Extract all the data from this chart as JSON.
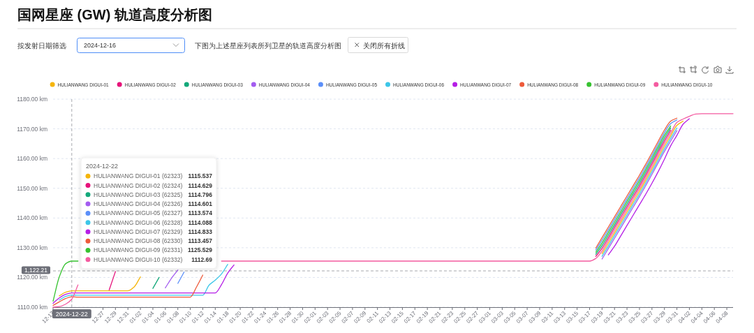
{
  "chart_data": {
    "type": "line",
    "title": "国网星座 (GW) 轨道高度分析图",
    "subtitle": "下图为上述星座列表所列卫星的轨道高度分析图",
    "categories": [
      "12-17",
      null,
      null,
      null,
      null,
      null,
      null,
      null,
      "12-27",
      null,
      "12-29",
      null,
      "12-31",
      null,
      "01-02",
      null,
      "01-04",
      null,
      "01-06",
      null,
      "01-08",
      null,
      "01-10",
      null,
      "01-12",
      null,
      "01-14",
      null,
      "01-18",
      null,
      "01-20",
      null,
      "01-22",
      null,
      "01-24",
      null,
      "01-26",
      null,
      "01-28",
      null,
      "01-30",
      null,
      "02-01",
      null,
      "02-03",
      null,
      "02-05",
      null,
      "02-07",
      null,
      "02-09",
      null,
      "02-11",
      null,
      "02-13",
      null,
      "02-15",
      null,
      "02-17",
      null,
      "02-19",
      null,
      "02-21",
      null,
      "02-23",
      null,
      "02-25",
      null,
      "02-27",
      null,
      "03-01",
      null,
      "03-03",
      null,
      "03-05",
      null,
      "03-07",
      null,
      "03-09",
      null,
      "03-11",
      null,
      "03-13",
      null,
      "03-15",
      null,
      "03-17",
      null,
      "03-19",
      null,
      "03-21",
      null,
      "03-23",
      null,
      "03-25",
      null,
      "03-27",
      null,
      "03-29",
      null,
      "03-31",
      null,
      "04-02",
      null,
      "04-04",
      null,
      "04-06",
      null,
      "04-08",
      null
    ],
    "series": [
      {
        "name": "HULIANWANG DIGUI-01",
        "color": "#f5b50a",
        "values": [
          null,
          1113.8,
          1115.0,
          1115.5,
          1115.5,
          1115.5,
          1115.5,
          1115.5,
          1115.5,
          1115.5,
          1115.5,
          1115.5,
          1115.5,
          1116.8,
          1120.2,
          null,
          null,
          null,
          null,
          null,
          null,
          null,
          null,
          null,
          null,
          null,
          null,
          null,
          null,
          null,
          null,
          null,
          null,
          null,
          null,
          null,
          null,
          null,
          null,
          null,
          null,
          null,
          null,
          null,
          null,
          null,
          null,
          null,
          null,
          null,
          null,
          null,
          null,
          null,
          null,
          null,
          null,
          null,
          null,
          null,
          null,
          null,
          null,
          null,
          null,
          null,
          null,
          null,
          null,
          null,
          null,
          null,
          null,
          null,
          null,
          null,
          null,
          null,
          null,
          null,
          null,
          null,
          null,
          null,
          null,
          null,
          null,
          null,
          1128.0,
          1131.5,
          1135.0,
          1138.5,
          1142.0,
          1145.5,
          1149.0,
          1152.7,
          1156.5,
          1160.4,
          1164.2,
          1167.7,
          1171.2,
          1172.6,
          null,
          null,
          null,
          null,
          null,
          null,
          null,
          null
        ]
      },
      {
        "name": "HULIANWANG DIGUI-02",
        "color": "#e6127a",
        "values": [
          null,
          null,
          null,
          null,
          null,
          null,
          null,
          null,
          null,
          1115.8,
          1122,
          null,
          null,
          null,
          null,
          null,
          null,
          null,
          null,
          null,
          null,
          null,
          null,
          null,
          null,
          null,
          null,
          null,
          null,
          null,
          null,
          null,
          null,
          null,
          null,
          null,
          null,
          null,
          null,
          null,
          null,
          null,
          null,
          null,
          null,
          null,
          null,
          null,
          null,
          null,
          null,
          null,
          null,
          null,
          null,
          null,
          null,
          null,
          null,
          null,
          null,
          null,
          null,
          null,
          null,
          null,
          null,
          null,
          null,
          null,
          null,
          null,
          null,
          null,
          null,
          null,
          null,
          null,
          null,
          null,
          null,
          null,
          null,
          null,
          null,
          null,
          null,
          1127.1,
          1129.8,
          1133.3,
          1136.8,
          1140.3,
          1143.8,
          1147.3,
          1150.8,
          1154.5,
          1158.3,
          1162.2,
          1166,
          1169.5,
          null,
          null,
          null,
          null,
          null,
          null,
          null,
          null,
          null,
          null
        ]
      },
      {
        "name": "HULIANWANG DIGUI-03",
        "color": "#13a87a",
        "values": [
          null,
          null,
          null,
          null,
          null,
          null,
          null,
          null,
          null,
          null,
          null,
          null,
          null,
          null,
          null,
          null,
          1116.3,
          1120,
          null,
          null,
          null,
          null,
          null,
          null,
          null,
          null,
          null,
          null,
          null,
          null,
          null,
          null,
          null,
          null,
          null,
          null,
          null,
          null,
          null,
          null,
          null,
          null,
          null,
          null,
          null,
          null,
          null,
          null,
          null,
          null,
          null,
          null,
          null,
          null,
          null,
          null,
          null,
          null,
          null,
          null,
          null,
          null,
          null,
          null,
          null,
          null,
          null,
          null,
          null,
          null,
          null,
          null,
          null,
          null,
          null,
          null,
          null,
          null,
          null,
          null,
          null,
          null,
          null,
          null,
          null,
          null,
          null,
          1127.8,
          1130.7,
          1134.2,
          1137.7,
          1141.2,
          1144.7,
          1148.2,
          1151.7,
          1155.4,
          1159.2,
          1163.1,
          1166.9,
          1170.3,
          null,
          null,
          null,
          null,
          null,
          null,
          null,
          null,
          null,
          null
        ]
      },
      {
        "name": "HULIANWANG DIGUI-04",
        "color": "#a35cf0",
        "values": [
          null,
          null,
          null,
          null,
          null,
          null,
          null,
          null,
          null,
          null,
          null,
          null,
          null,
          null,
          null,
          null,
          null,
          null,
          1116.5,
          1119.8,
          1122.5,
          null,
          null,
          null,
          null,
          null,
          null,
          null,
          null,
          null,
          null,
          null,
          null,
          null,
          null,
          null,
          null,
          null,
          null,
          null,
          null,
          null,
          null,
          null,
          null,
          null,
          null,
          null,
          null,
          null,
          null,
          null,
          null,
          null,
          null,
          null,
          null,
          null,
          null,
          null,
          null,
          null,
          null,
          null,
          null,
          null,
          null,
          null,
          null,
          null,
          null,
          null,
          null,
          null,
          null,
          null,
          null,
          null,
          null,
          null,
          null,
          null,
          null,
          null,
          null,
          null,
          null,
          null,
          1126.2,
          1129.7,
          1133.2,
          1136.7,
          1140.2,
          1143.7,
          1147.2,
          1150.9,
          1154.7,
          1158.6,
          1162.4,
          1165.9,
          1169.4,
          null,
          null,
          null,
          null,
          null,
          null,
          null,
          null,
          null
        ]
      },
      {
        "name": "HULIANWANG DIGUI-05",
        "color": "#5b8ff9",
        "values": [
          null,
          null,
          null,
          null,
          null,
          null,
          null,
          null,
          null,
          null,
          null,
          null,
          null,
          null,
          null,
          null,
          null,
          null,
          null,
          null,
          1118,
          1121.8,
          null,
          null,
          null,
          null,
          null,
          null,
          null,
          null,
          null,
          null,
          null,
          null,
          null,
          null,
          null,
          null,
          null,
          null,
          null,
          null,
          null,
          null,
          null,
          null,
          null,
          null,
          null,
          null,
          null,
          null,
          null,
          null,
          null,
          null,
          null,
          null,
          null,
          null,
          null,
          null,
          null,
          null,
          null,
          null,
          null,
          null,
          null,
          null,
          null,
          null,
          null,
          null,
          null,
          null,
          null,
          null,
          null,
          null,
          null,
          null,
          null,
          null,
          null,
          null,
          null,
          1129.2,
          1132.5,
          1136,
          1139.5,
          1143,
          1146.5,
          1150,
          1153.5,
          1157.2,
          1161,
          1164.9,
          1168.7,
          1171.8,
          1173.0,
          null,
          null,
          null,
          null,
          null,
          null,
          null,
          null,
          null
        ]
      },
      {
        "name": "HULIANWANG DIGUI-06",
        "color": "#3cc6e8",
        "values": [
          null,
          1112.4,
          1113.6,
          1114.1,
          1114.0,
          1114.0,
          1114.0,
          1114.0,
          1114.0,
          1114.0,
          1114.0,
          1114.0,
          1114.0,
          1114.0,
          1114.0,
          1114.0,
          1114.0,
          1114.0,
          1114.0,
          1114.0,
          1114.0,
          1114.0,
          1114.0,
          1114.0,
          1114.0,
          1117.4,
          1119.1,
          1121.2,
          1124.4,
          null,
          null,
          null,
          null,
          null,
          null,
          null,
          null,
          null,
          null,
          null,
          null,
          null,
          null,
          null,
          null,
          null,
          null,
          null,
          null,
          null,
          null,
          null,
          null,
          null,
          null,
          null,
          null,
          null,
          null,
          null,
          null,
          null,
          null,
          null,
          null,
          null,
          null,
          null,
          null,
          null,
          null,
          null,
          null,
          null,
          null,
          null,
          null,
          null,
          null,
          null,
          null,
          null,
          null,
          null,
          null,
          null,
          null,
          null,
          1127.1,
          1130.6,
          1134.1,
          1137.6,
          1141.1,
          1144.6,
          1148.1,
          1151.8,
          1155.6,
          1159.5,
          1163.3,
          1166.8,
          1170.3,
          null,
          null,
          null,
          null,
          null,
          null,
          null,
          null,
          null
        ]
      },
      {
        "name": "HULIANWANG DIGUI-07",
        "color": "#b51ee6",
        "values": [
          1111.3,
          1113.1,
          1114.3,
          1114.8,
          1114.8,
          1114.8,
          1114.8,
          1114.8,
          1114.8,
          1114.8,
          1114.8,
          1114.8,
          1114.8,
          1114.8,
          1114.8,
          1114.8,
          1114.8,
          1114.8,
          1114.8,
          1114.8,
          1114.8,
          1114.8,
          1114.8,
          1114.8,
          1114.8,
          1114.8,
          1114.8,
          1117.6,
          1121.5,
          1124.2,
          null,
          null,
          null,
          null,
          null,
          null,
          null,
          null,
          null,
          null,
          null,
          null,
          null,
          null,
          null,
          null,
          null,
          null,
          null,
          null,
          null,
          null,
          null,
          null,
          null,
          null,
          null,
          null,
          null,
          null,
          null,
          null,
          null,
          null,
          null,
          null,
          null,
          null,
          null,
          null,
          null,
          null,
          null,
          null,
          null,
          null,
          null,
          null,
          null,
          null,
          null,
          null,
          null,
          null,
          null,
          null,
          null,
          null,
          null,
          1127.6,
          1130.5,
          1134,
          1137.5,
          1141,
          1144.5,
          1148,
          1151.7,
          1155.6,
          1159.8,
          1164.3,
          1167.8,
          1171.6,
          1173.4,
          null,
          null,
          null,
          null,
          null,
          null,
          null
        ]
      },
      {
        "name": "HULIANWANG DIGUI-08",
        "color": "#ee5a3a",
        "values": [
          1110.6,
          1111.8,
          1112.9,
          1113.5,
          1113.4,
          1113.4,
          1113.4,
          1113.4,
          1113.4,
          1113.4,
          1113.4,
          1113.4,
          1113.4,
          1113.4,
          1113.4,
          1113.4,
          1113.4,
          1113.4,
          1113.4,
          1113.4,
          1113.4,
          1113.4,
          1113.4,
          1116.8,
          1120.8,
          null,
          null,
          null,
          null,
          null,
          null,
          null,
          null,
          null,
          null,
          null,
          null,
          null,
          null,
          null,
          null,
          null,
          null,
          null,
          null,
          null,
          null,
          null,
          null,
          null,
          null,
          null,
          null,
          null,
          null,
          null,
          null,
          null,
          null,
          null,
          null,
          null,
          null,
          null,
          null,
          null,
          null,
          null,
          null,
          null,
          null,
          null,
          null,
          null,
          null,
          null,
          null,
          null,
          null,
          null,
          null,
          null,
          null,
          null,
          null,
          null,
          null,
          1129.9,
          1133.4,
          1136.9,
          1140.4,
          1143.9,
          1147.4,
          1150.9,
          1154.4,
          1158.1,
          1161.9,
          1165.8,
          1169.6,
          1172.6,
          1173.6,
          null,
          null,
          null,
          null,
          null,
          null,
          null,
          null,
          null
        ]
      },
      {
        "name": "HULIANWANG DIGUI-09",
        "color": "#36c230",
        "values": [
          1112.0,
          1120.2,
          1124.6,
          1125.5,
          1125.5,
          null,
          null,
          null,
          null,
          null,
          null,
          null,
          null,
          null,
          null,
          null,
          null,
          null,
          null,
          null,
          null,
          null,
          null,
          null,
          null,
          null,
          null,
          null,
          null,
          null,
          null,
          null,
          null,
          null,
          null,
          null,
          null,
          null,
          null,
          null,
          null,
          null,
          null,
          null,
          null,
          null,
          null,
          null,
          null,
          null,
          null,
          null,
          null,
          null,
          null,
          null,
          null,
          null,
          null,
          null,
          null,
          null,
          null,
          null,
          null,
          null,
          null,
          null,
          null,
          null,
          null,
          null,
          null,
          null,
          null,
          null,
          null,
          null,
          null,
          null,
          null,
          null,
          null,
          null,
          null,
          null,
          null,
          1128.5,
          1131.6,
          1135.1,
          1138.6,
          1142.1,
          1145.6,
          1149.1,
          1152.6,
          1156.3,
          1160.1,
          1164,
          1167.8,
          1171.0,
          null,
          null,
          null,
          null,
          null,
          null,
          null,
          null,
          null,
          null
        ]
      },
      {
        "name": "HULIANWANG DIGUI-10",
        "color": "#f45ba0",
        "values": [
          1110.0,
          1110.2,
          1111.0,
          1112.7,
          1117.5,
          null,
          null,
          null,
          null,
          null,
          null,
          null,
          null,
          null,
          null,
          null,
          null,
          null,
          null,
          null,
          null,
          null,
          null,
          null,
          null,
          null,
          null,
          1125.5,
          1125.5,
          1125.5,
          1125.5,
          1125.5,
          1125.5,
          1125.5,
          1125.5,
          1125.5,
          1125.5,
          1125.5,
          1125.5,
          1125.5,
          1125.5,
          1125.5,
          1125.5,
          1125.5,
          1125.5,
          1125.5,
          1125.5,
          1125.5,
          1125.5,
          1125.5,
          1125.5,
          1125.5,
          1125.5,
          1125.5,
          1125.5,
          1125.5,
          1125.5,
          1125.5,
          1125.5,
          1125.5,
          1125.5,
          1125.5,
          1125.5,
          1125.5,
          1125.5,
          1125.5,
          1125.5,
          1125.5,
          1125.5,
          1125.5,
          1125.5,
          1125.5,
          1125.5,
          1125.5,
          1125.5,
          1125.5,
          1125.5,
          1125.5,
          1125.5,
          1125.5,
          1125.5,
          1125.5,
          1125.5,
          1125.5,
          1125.5,
          1125.5,
          1125.5,
          1126.4,
          1128.9,
          1132.4,
          1135.9,
          1139.4,
          1142.9,
          1146.4,
          1149.9,
          1153.6,
          1157.4,
          1161.3,
          1165.1,
          1168.6,
          1172.2,
          1173.3,
          1174.2,
          1175.0,
          1175.1,
          1175.1,
          1175.1,
          1175.1,
          1175.1,
          1175.1
        ]
      }
    ],
    "ylim": [
      1110,
      1180
    ],
    "yticks": [
      {
        "value": 1110,
        "label": "1110.00 km"
      },
      {
        "value": 1120,
        "label": "1120.00 km"
      },
      {
        "value": 1130,
        "label": "1130.00 km"
      },
      {
        "value": 1140,
        "label": "1140.00 km"
      },
      {
        "value": 1150,
        "label": "1150.00 km"
      },
      {
        "value": 1160,
        "label": "1160.00 km"
      },
      {
        "value": 1170,
        "label": "1170.00 km"
      },
      {
        "value": 1180,
        "label": "1180.00 km"
      }
    ],
    "grid": "y",
    "legend": "top",
    "ref_lines": [
      {
        "axis": "y",
        "value": 1122.21,
        "label": "1,122.21",
        "color": "#6e7079",
        "line_style": "dashed"
      }
    ],
    "annotations": [
      "按发射日期筛选",
      "2024-12-16",
      "关闭所有折线",
      "2024-12-22",
      "2024-12-22",
      "HULIANWANG DIGUI-01 (62323)",
      "HULIANWANG DIGUI-02 (62324)",
      "HULIANWANG DIGUI-03 (62325)",
      "HULIANWANG DIGUI-04 (62326)",
      "HULIANWANG DIGUI-05 (62327)",
      "HULIANWANG DIGUI-06 (62328)",
      "HULIANWANG DIGUI-07 (62329)",
      "HULIANWANG DIGUI-08 (62330)",
      "HULIANWANG DIGUI-09 (62331)",
      "HULIANWANG DIGUI-10 (62332)",
      "1115.537",
      "1114.629",
      "1114.796",
      "1114.601",
      "1113.574",
      "1114.088",
      "1114.833",
      "1113.457",
      "1125.529",
      "1112.69"
    ]
  }
}
